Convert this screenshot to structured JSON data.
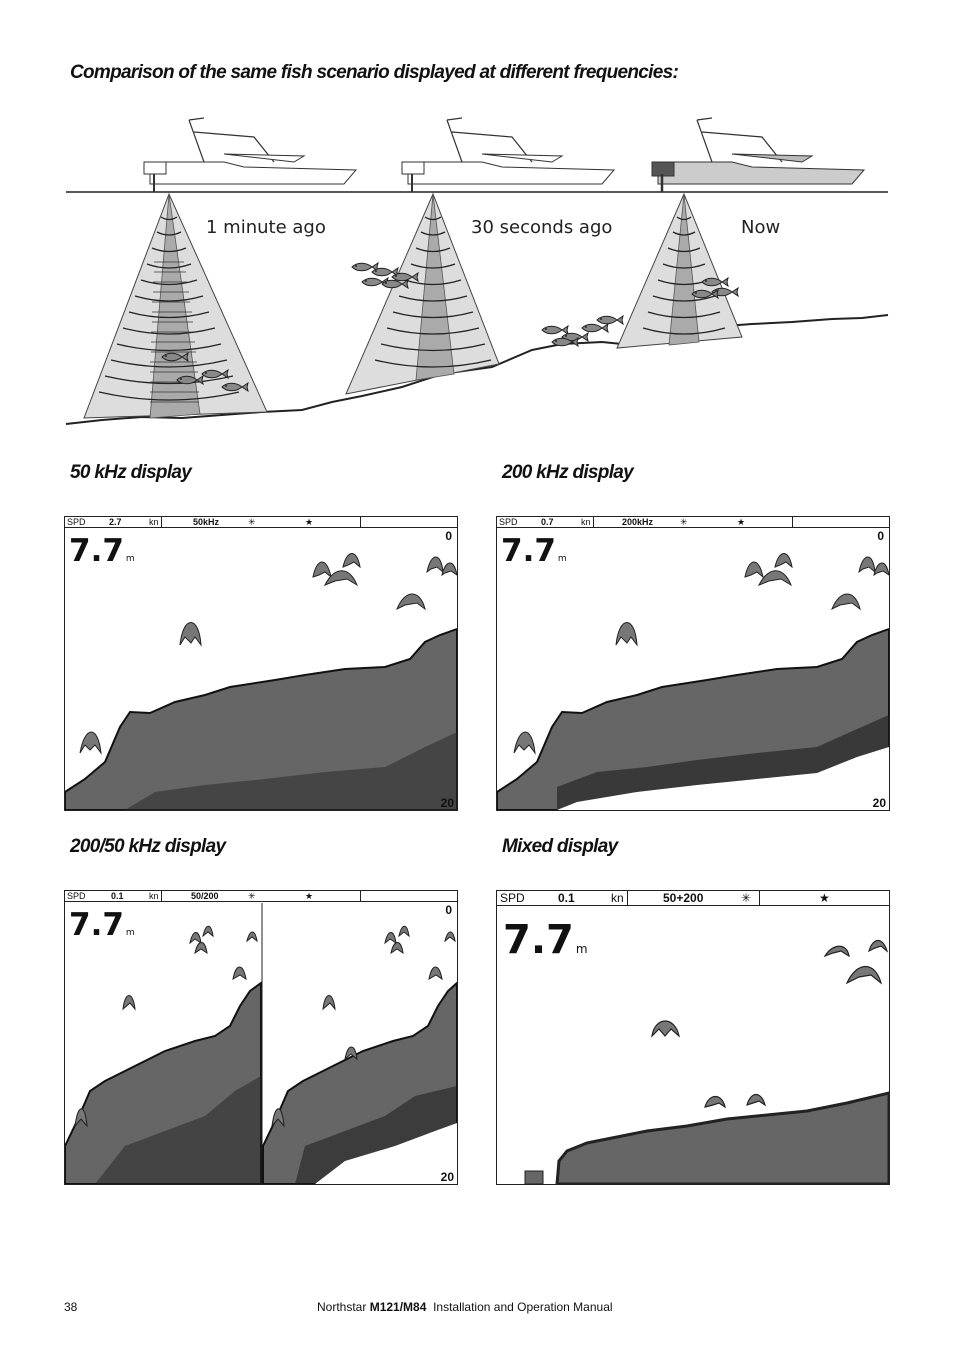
{
  "page": {
    "title": "Comparison of the same fish scenario displayed at different frequencies:",
    "page_number": "38",
    "footer_brand": "Northstar",
    "footer_model": "M121/M84",
    "footer_rest": "Installation and Operation Manual"
  },
  "scenario": {
    "captions": [
      "1 minute ago",
      "30 seconds ago",
      "Now"
    ]
  },
  "panels": {
    "p50": {
      "heading": "50 kHz display",
      "spd_label": "SPD",
      "spd_value": "2.7",
      "spd_unit": "kn",
      "freq": "50kHz",
      "depth": "7.7",
      "depth_unit": "m",
      "scale_top": "0",
      "scale_bottom": "20"
    },
    "p200": {
      "heading": "200 kHz display",
      "spd_label": "SPD",
      "spd_value": "0.7",
      "spd_unit": "kn",
      "freq": "200kHz",
      "depth": "7.7",
      "depth_unit": "m",
      "scale_top": "0",
      "scale_bottom": "20"
    },
    "split": {
      "heading": "200/50 kHz display",
      "spd_label": "SPD",
      "spd_value": "0.1",
      "spd_unit": "kn",
      "freq": "50/200",
      "depth": "7.7",
      "depth_unit": "m",
      "scale_top": "0",
      "scale_bottom": "20"
    },
    "mixed": {
      "heading": "Mixed display",
      "spd_label": "SPD",
      "spd_value": "0.1",
      "spd_unit": "kn",
      "freq": "50+200",
      "depth": "7.7",
      "depth_unit": "m"
    }
  }
}
